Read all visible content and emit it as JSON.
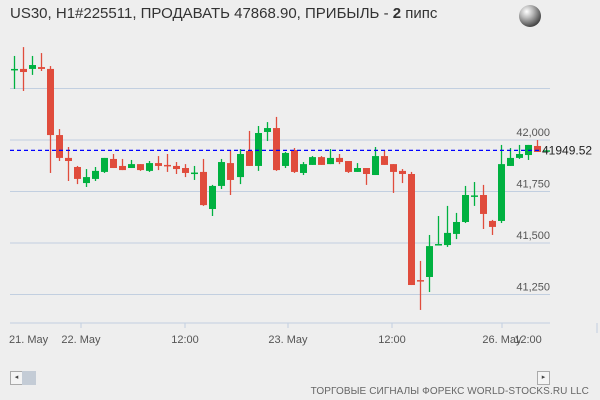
{
  "header": {
    "title_prefix": "US30, H1#225511, ПРОДАВАТЬ 47868.90, ПРИБЫЛЬ - ",
    "profit_value": "2",
    "profit_unit": " пипс",
    "globe_icon": "globe-icon"
  },
  "chart_data": {
    "type": "candlestick",
    "symbol": "US30",
    "timeframe": "H1",
    "y_ticks": [
      "42,000",
      "41,750",
      "41,500",
      "41,250"
    ],
    "y_tick_values": [
      42000,
      41750,
      41500,
      41250
    ],
    "ylim": [
      41100,
      42500
    ],
    "grid": true,
    "x_ticks": [
      "21. May",
      "22. May",
      "12:00",
      "23. May",
      "12:00",
      "26. May",
      "12:00"
    ],
    "current_price": 41949.52,
    "current_price_label": "41949.52",
    "colors": {
      "up": "#00b140",
      "down": "#e04c3c",
      "current_line": "#0000ff",
      "grid": "#c2cfe0"
    },
    "ohlc": [
      [
        42340,
        42408,
        42248,
        42345
      ],
      [
        42345,
        42451,
        42238,
        42330
      ],
      [
        42345,
        42408,
        42316,
        42364
      ],
      [
        42354,
        42422,
        42335,
        42345
      ],
      [
        42345,
        42359,
        41840,
        42024
      ],
      [
        42024,
        42053,
        41898,
        41913
      ],
      [
        41913,
        41966,
        41801,
        41898
      ],
      [
        41869,
        41874,
        41786,
        41811
      ],
      [
        41791,
        41859,
        41772,
        41820
      ],
      [
        41811,
        41869,
        41801,
        41850
      ],
      [
        41845,
        41913,
        41840,
        41913
      ],
      [
        41908,
        41932,
        41864,
        41864
      ],
      [
        41874,
        41908,
        41854,
        41854
      ],
      [
        41864,
        41903,
        41864,
        41883
      ],
      [
        41883,
        41883,
        41850,
        41854
      ],
      [
        41850,
        41898,
        41845,
        41888
      ],
      [
        41888,
        41922,
        41854,
        41874
      ],
      [
        41879,
        41932,
        41845,
        41874
      ],
      [
        41874,
        41893,
        41835,
        41859
      ],
      [
        41864,
        41883,
        41820,
        41840
      ],
      [
        41840,
        41874,
        41806,
        41842
      ],
      [
        41845,
        41908,
        41680,
        41684
      ],
      [
        41665,
        41782,
        41631,
        41777
      ],
      [
        41777,
        41908,
        41762,
        41893
      ],
      [
        41888,
        41951,
        41733,
        41806
      ],
      [
        41820,
        41956,
        41786,
        41932
      ],
      [
        41947,
        42044,
        41874,
        41874
      ],
      [
        41874,
        42068,
        41850,
        42034
      ],
      [
        42039,
        42087,
        41995,
        42058
      ],
      [
        42058,
        42112,
        41850,
        41854
      ],
      [
        41874,
        41942,
        41864,
        41937
      ],
      [
        41951,
        41961,
        41840,
        41845
      ],
      [
        41840,
        41893,
        41830,
        41883
      ],
      [
        41879,
        41922,
        41879,
        41917
      ],
      [
        41917,
        41922,
        41879,
        41879
      ],
      [
        41883,
        41956,
        41883,
        41913
      ],
      [
        41913,
        41932,
        41883,
        41893
      ],
      [
        41898,
        41898,
        41840,
        41845
      ],
      [
        41845,
        41888,
        41845,
        41864
      ],
      [
        41864,
        41864,
        41782,
        41835
      ],
      [
        41830,
        41966,
        41830,
        41922
      ],
      [
        41922,
        41951,
        41879,
        41879
      ],
      [
        41883,
        41883,
        41743,
        41845
      ],
      [
        41850,
        41859,
        41791,
        41835
      ],
      [
        41835,
        41845,
        41296,
        41296
      ],
      [
        41320,
        41413,
        41175,
        41316
      ],
      [
        41335,
        41539,
        41262,
        41485
      ],
      [
        41490,
        41631,
        41490,
        41495
      ],
      [
        41490,
        41680,
        41481,
        41549
      ],
      [
        41544,
        41646,
        41519,
        41602
      ],
      [
        41602,
        41777,
        41597,
        41733
      ],
      [
        41728,
        41796,
        41680,
        41731
      ],
      [
        41733,
        41782,
        41568,
        41641
      ],
      [
        41607,
        41612,
        41539,
        41578
      ],
      [
        41607,
        41976,
        41597,
        41883
      ],
      [
        41874,
        41961,
        41874,
        41913
      ],
      [
        41913,
        41976,
        41908,
        41932
      ],
      [
        41927,
        41976,
        41903,
        41976
      ],
      [
        41971,
        42000,
        41942,
        41942
      ],
      [
        41949,
        41952,
        41947,
        41950
      ]
    ]
  },
  "scrollbar": {
    "left_arrow": "◂",
    "right_arrow": "▸"
  },
  "footer": {
    "text": "ТОРГОВЫЕ СИГНАЛЫ ФОРЕКС WORLD-STOCKS.RU LLC"
  }
}
